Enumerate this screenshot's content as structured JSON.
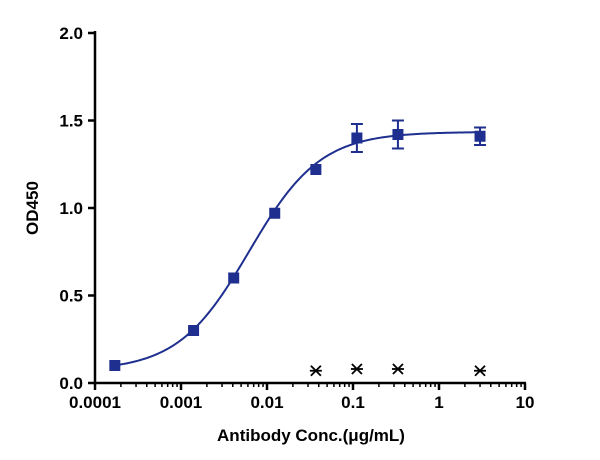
{
  "chart_data": {
    "type": "scatter",
    "xlabel": "Antibody Conc.(μg/mL)",
    "ylabel": "OD450",
    "xscale": "log",
    "xlim": [
      0.0001,
      10
    ],
    "ylim": [
      0,
      2
    ],
    "x_ticks": [
      "0.0001",
      "0.001",
      "0.01",
      "0.1",
      "1",
      "10"
    ],
    "y_ticks": [
      "0.0",
      "0.5",
      "1.0",
      "1.5",
      "2.0"
    ],
    "grid": false,
    "legend": "none",
    "series": [
      {
        "marker": "square",
        "color": "#1f2f8f",
        "points": [
          {
            "x": 0.00017,
            "y": 0.1,
            "err": 0
          },
          {
            "x": 0.0014,
            "y": 0.3,
            "err": 0
          },
          {
            "x": 0.0041,
            "y": 0.6,
            "err": 0
          },
          {
            "x": 0.0123,
            "y": 0.97,
            "err": 0
          },
          {
            "x": 0.037,
            "y": 1.22,
            "err": 0
          },
          {
            "x": 0.111,
            "y": 1.4,
            "err": 0.08
          },
          {
            "x": 0.333,
            "y": 1.42,
            "err": 0.08
          },
          {
            "x": 3.0,
            "y": 1.41,
            "err": 0.05
          }
        ]
      },
      {
        "marker": "asterisk",
        "color": "#000000",
        "points": [
          {
            "x": 0.037,
            "y": 0.07
          },
          {
            "x": 0.111,
            "y": 0.08
          },
          {
            "x": 0.333,
            "y": 0.08
          },
          {
            "x": 3.0,
            "y": 0.07
          }
        ]
      }
    ],
    "fit_curve": {
      "type": "4PL",
      "color": "#1f2f8f",
      "bottom": 0.07,
      "top": 1.435,
      "ec50": 0.0062,
      "hill": 1.05,
      "x_range": [
        0.00017,
        3.0
      ]
    }
  }
}
